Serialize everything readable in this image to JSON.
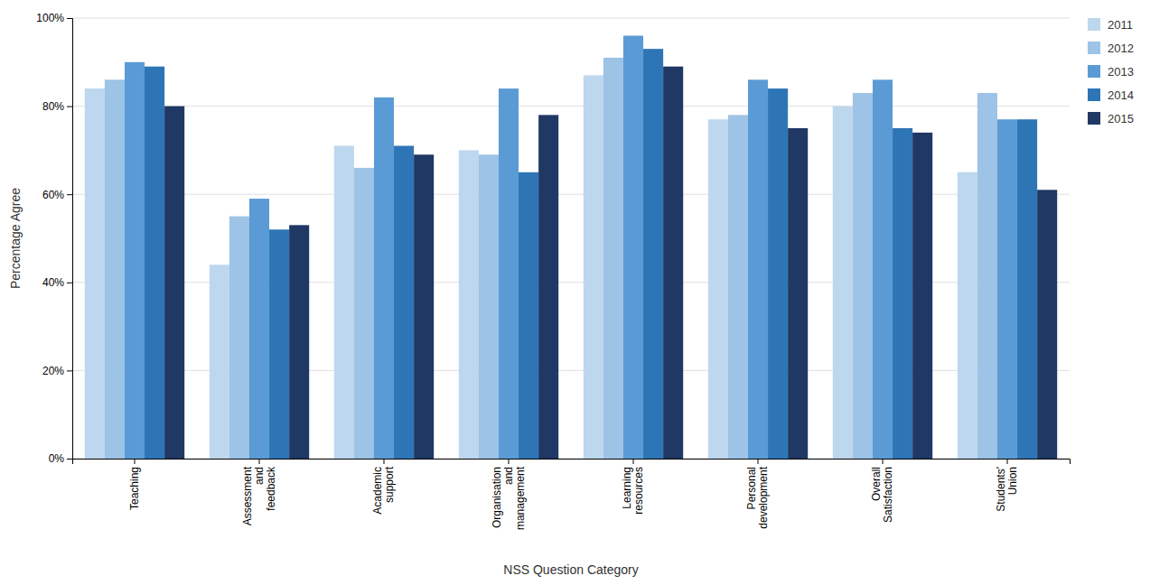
{
  "chart_data": {
    "type": "bar",
    "xlabel": "NSS Question Category",
    "ylabel": "Percentage Agree",
    "categories": [
      "Teaching",
      "Assessment\nand\nfeedback",
      "Academic\nsupport",
      "Organisation\nand\nmanagement",
      "Learning\nresources",
      "Personal\ndevelopment",
      "Overall\nSatisfaction",
      "Students'\nUnion"
    ],
    "series": [
      {
        "name": "2011",
        "color": "#BDD7EE",
        "values": [
          84,
          44,
          71,
          70,
          87,
          77,
          80,
          65
        ]
      },
      {
        "name": "2012",
        "color": "#9DC3E6",
        "values": [
          86,
          55,
          66,
          69,
          91,
          78,
          83,
          83
        ]
      },
      {
        "name": "2013",
        "color": "#5B9BD5",
        "values": [
          90,
          59,
          82,
          84,
          96,
          86,
          86,
          77
        ]
      },
      {
        "name": "2014",
        "color": "#2E75B6",
        "values": [
          89,
          52,
          71,
          65,
          93,
          84,
          75,
          77
        ]
      },
      {
        "name": "2015",
        "color": "#1F3864",
        "values": [
          80,
          53,
          69,
          78,
          89,
          75,
          74,
          61
        ]
      }
    ],
    "ylim": [
      0,
      100
    ],
    "yticks": [
      {
        "value": 0,
        "label": "0%"
      },
      {
        "value": 20,
        "label": "20%"
      },
      {
        "value": 40,
        "label": "40%"
      },
      {
        "value": 60,
        "label": "60%"
      },
      {
        "value": 80,
        "label": "80%"
      },
      {
        "value": 100,
        "label": "100%"
      }
    ],
    "grid": true,
    "legend": "right"
  }
}
